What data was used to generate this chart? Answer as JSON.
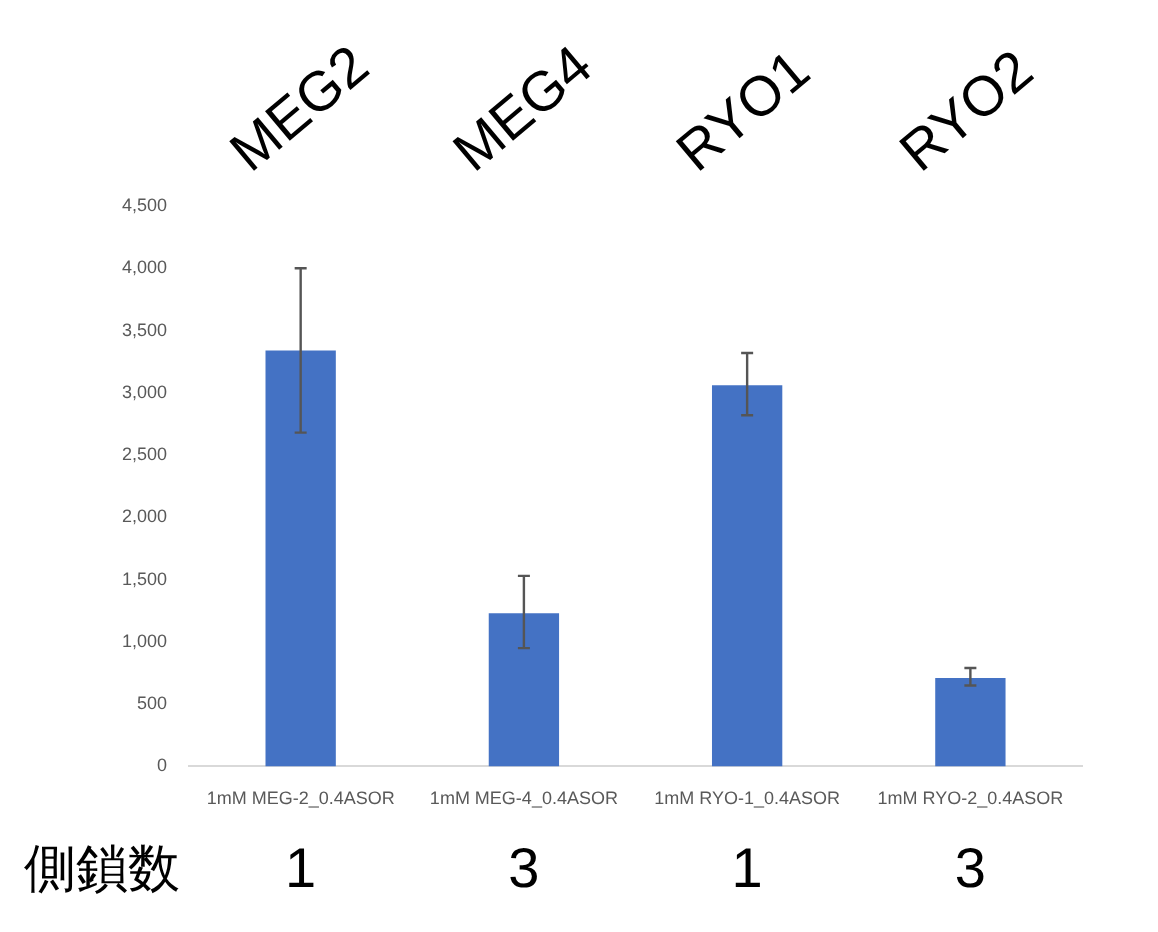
{
  "chart_data": {
    "type": "bar",
    "categories": [
      "1mM MEG-2_0.4ASOR",
      "1mM MEG-4_0.4ASOR",
      "1mM RYO-1_0.4ASOR",
      "1mM RYO-2_0.4ASOR"
    ],
    "values": [
      3340,
      1230,
      3060,
      710
    ],
    "errors": [
      [
        2680,
        4000
      ],
      [
        950,
        1530
      ],
      [
        2820,
        3320
      ],
      [
        650,
        790
      ]
    ],
    "color": "#4472c4",
    "ylim": [
      0,
      4500
    ],
    "yticks": [
      {
        "value": 0,
        "label": "0"
      },
      {
        "value": 500,
        "label": "500"
      },
      {
        "value": 1000,
        "label": "1,000"
      },
      {
        "value": 1500,
        "label": "1,500"
      },
      {
        "value": 2000,
        "label": "2,000"
      },
      {
        "value": 2500,
        "label": "2,500"
      },
      {
        "value": 3000,
        "label": "3,000"
      },
      {
        "value": 3500,
        "label": "3,500"
      },
      {
        "value": 4000,
        "label": "4,000"
      },
      {
        "value": 4500,
        "label": "4,500"
      }
    ],
    "grid": false,
    "legend": false,
    "annotations": [
      "MEG2",
      "MEG4",
      "RYO1",
      "RYO2",
      "側鎖数",
      "1",
      "3",
      "1",
      "3"
    ]
  }
}
